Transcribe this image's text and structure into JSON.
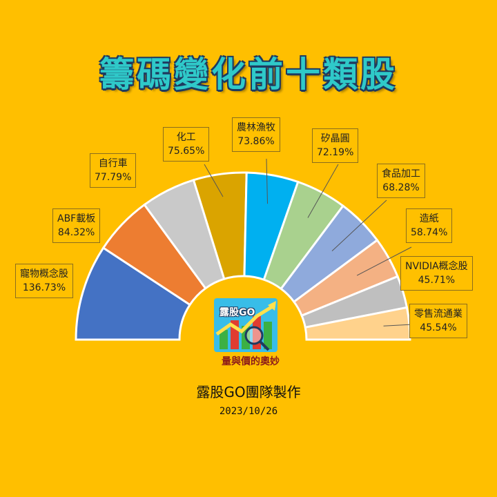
{
  "title": "籌碼變化前十類股",
  "footer": {
    "team": "露股GO團隊製作",
    "date": "2023/10/26"
  },
  "logo": {
    "title": "露股GO",
    "slogan": "量與價的奧妙"
  },
  "chart_data": {
    "type": "pie",
    "categories": [
      "寵物概念股",
      "ABF載板",
      "自行車",
      "化工",
      "農林漁牧",
      "矽晶圓",
      "食品加工",
      "造紙",
      "NVIDIA概念股",
      "零售流通業"
    ],
    "values": [
      136.73,
      84.32,
      77.79,
      75.65,
      73.86,
      72.19,
      68.28,
      58.74,
      45.71,
      45.54
    ],
    "value_labels": [
      "136.73%",
      "84.32%",
      "77.79%",
      "75.65%",
      "73.86%",
      "72.19%",
      "68.28%",
      "58.74%",
      "45.71%",
      "45.54%"
    ],
    "colors": [
      "#4472C4",
      "#ED7D31",
      "#C9C9C9",
      "#DAA400",
      "#00B0F0",
      "#A9D18E",
      "#8FAADC",
      "#F4B183",
      "#BFBFBF",
      "#FFD28C"
    ],
    "layout": "half-donut"
  }
}
